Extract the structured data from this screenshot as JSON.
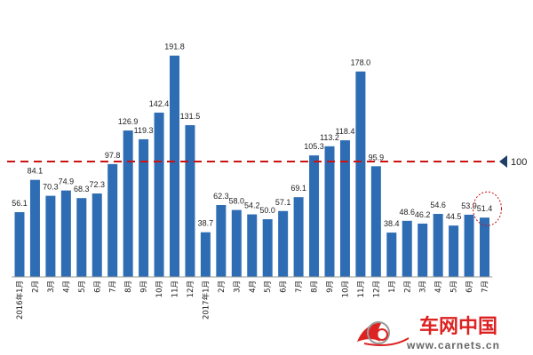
{
  "chart_data": {
    "type": "bar",
    "categories": [
      "2016年1月",
      "2月",
      "3月",
      "4月",
      "5月",
      "6月",
      "7月",
      "8月",
      "9月",
      "10月",
      "11月",
      "12月",
      "2017年1月",
      "2月",
      "3月",
      "4月",
      "5月",
      "6月",
      "7月",
      "8月",
      "9月",
      "10月",
      "11月",
      "12月",
      "1月",
      "2月",
      "3月",
      "4月",
      "5月",
      "6月",
      "7月"
    ],
    "values": [
      56.1,
      84.1,
      70.3,
      74.9,
      68.3,
      72.3,
      97.8,
      126.9,
      119.3,
      142.4,
      191.8,
      131.5,
      38.7,
      62.3,
      58.0,
      54.2,
      50.0,
      57.1,
      69.1,
      105.3,
      113.2,
      118.4,
      178.0,
      95.9,
      38.4,
      48.6,
      46.2,
      54.6,
      44.5,
      53.9,
      51.4
    ],
    "value_labels": [
      "56.1",
      "84.1",
      "70.3",
      "74.9",
      "68.3",
      "72.3",
      "97.8",
      "126.9",
      "119.3",
      "142.4",
      "191.8",
      "131.5",
      "38.7",
      "62.3",
      "58.0",
      "54.2",
      "50.0",
      "57.1",
      "69.1",
      "105.3",
      "113.2",
      "118.4",
      "178.0",
      "95.9",
      "38.4",
      "48.6",
      "46.2",
      "54.6",
      "44.5",
      "53.9",
      "51.4"
    ],
    "reference_line": {
      "value": 100,
      "label": "100",
      "color": "#cc1111",
      "style": "dashed"
    },
    "highlight_index": 30,
    "ylim": [
      0,
      200
    ],
    "bar_color": "#2e6db4",
    "grid": false,
    "legend": "none",
    "title": "",
    "xlabel": "",
    "ylabel": ""
  },
  "watermark": {
    "text_cn": "车网中国",
    "url": "www.carnets.cn"
  }
}
